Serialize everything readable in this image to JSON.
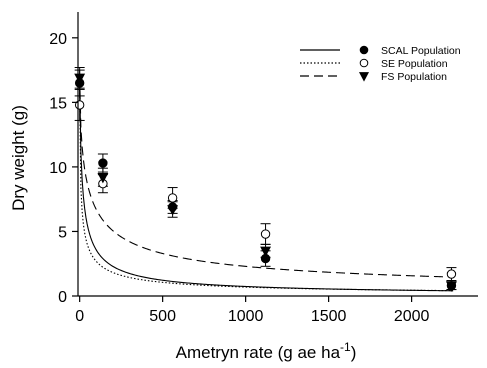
{
  "chart_data": {
    "type": "scatter",
    "title": "",
    "xlabel": "Ametryn rate (g ae ha",
    "xlabel_superscript": "-1",
    "xlabel_suffix": ")",
    "ylabel": "Dry weight (g)",
    "xlim": [
      -10,
      2400
    ],
    "ylim": [
      0,
      22
    ],
    "x_ticks": [
      0,
      500,
      1000,
      1500,
      2000
    ],
    "y_ticks": [
      0,
      5,
      10,
      15,
      20
    ],
    "grid": false,
    "legend_position": "top-right",
    "series": [
      {
        "name": "SCAL Population",
        "marker": "filled-circle",
        "line_style": "solid",
        "points": [
          {
            "x": 0,
            "y": 16.5,
            "err": 1.0
          },
          {
            "x": 140,
            "y": 10.3,
            "err": 0.7
          },
          {
            "x": 560,
            "y": 6.9,
            "err": 0.5
          },
          {
            "x": 1120,
            "y": 2.9,
            "err": 0.6
          },
          {
            "x": 2240,
            "y": 0.8,
            "err": 0.3
          }
        ],
        "curve": {
          "a": 16.6,
          "b": 18.6,
          "c": 0.77
        }
      },
      {
        "name": "SE Population",
        "marker": "open-circle",
        "line_style": "dotted",
        "points": [
          {
            "x": 0,
            "y": 14.8,
            "err": 1.2
          },
          {
            "x": 140,
            "y": 8.7,
            "err": 0.7
          },
          {
            "x": 560,
            "y": 7.6,
            "err": 0.8
          },
          {
            "x": 1120,
            "y": 4.8,
            "err": 0.8
          },
          {
            "x": 2240,
            "y": 1.7,
            "err": 0.5
          }
        ],
        "curve": {
          "a": 16.0,
          "b": 8.5,
          "c": 0.65
        }
      },
      {
        "name": "FS Population",
        "marker": "filled-triangle-down",
        "line_style": "dashed",
        "points": [
          {
            "x": 0,
            "y": 16.9,
            "err": 0.8
          },
          {
            "x": 140,
            "y": 9.2,
            "err": 0.7
          },
          {
            "x": 560,
            "y": 6.7,
            "err": 0.6
          },
          {
            "x": 1120,
            "y": 3.5,
            "err": 0.5
          },
          {
            "x": 2240,
            "y": 0.8,
            "err": 0.3
          }
        ],
        "curve": {
          "a": 17.0,
          "b": 50,
          "c": 0.62
        }
      }
    ]
  }
}
